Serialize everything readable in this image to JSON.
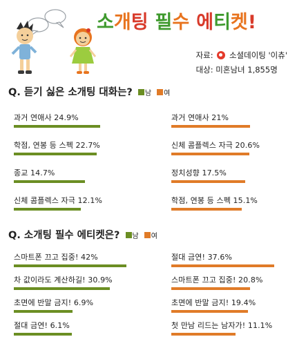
{
  "title": "소개팅 필수 에티켓!",
  "source": {
    "label": "자료:",
    "org": "소셜데이팅 '이츄'",
    "target_label": "대상:",
    "target": "미혼남녀 1,855명"
  },
  "colors": {
    "male": "#6b8e23",
    "female": "#e07b28",
    "title_green": "#3f9a2e",
    "title_orange": "#e8741f",
    "title_red": "#d83a2a"
  },
  "legend": {
    "male": "남",
    "female": "여"
  },
  "chart_data": [
    {
      "type": "bar",
      "title": "Q. 듣기 싫은 소개팅 대화는?",
      "unit": "%",
      "series": [
        {
          "name": "남",
          "labels": [
            "과거 연애사 24.9%",
            "학점, 연봉 등 스펙 22.7%",
            "종교 14.7%",
            "신체 콤플렉스 자극 12.1%"
          ],
          "categories": [
            "과거 연애사",
            "학점, 연봉 등 스펙",
            "종교",
            "신체 콤플렉스 자극"
          ],
          "values": [
            24.9,
            22.7,
            14.7,
            12.1
          ]
        },
        {
          "name": "여",
          "labels": [
            "과거 연애사 21%",
            "신체 콤플렉스 자극 20.6%",
            "정치성향 17.5%",
            "학점, 연봉 등 스펙 15.1%"
          ],
          "categories": [
            "과거 연애사",
            "신체 콤플렉스 자극",
            "정치성향",
            "학점, 연봉 등 스펙"
          ],
          "values": [
            21,
            20.6,
            17.5,
            15.1
          ]
        }
      ]
    },
    {
      "type": "bar",
      "title": "Q. 소개팅 필수 에티켓은?",
      "unit": "%",
      "series": [
        {
          "name": "남",
          "labels": [
            "스마트폰 끄고 집중! 42%",
            "차 값이라도 계산하길! 30.9%",
            "초면에 반말 금지! 6.9%",
            "절대 금연! 6.1%"
          ],
          "categories": [
            "스마트폰 끄고 집중!",
            "차 값이라도 계산하길!",
            "초면에 반말 금지!",
            "절대 금연!"
          ],
          "values": [
            42,
            30.9,
            6.9,
            6.1
          ]
        },
        {
          "name": "여",
          "labels": [
            "절대 금연! 37.6%",
            "스마트폰 끄고 집중! 20.8%",
            "초면에 반말 금지! 19.4%",
            "첫 만남 리드는 남자가! 11.1%"
          ],
          "categories": [
            "절대 금연!",
            "스마트폰 끄고 집중!",
            "초면에 반말 금지!",
            "첫 만남 리드는 남자가!"
          ],
          "values": [
            37.6,
            20.8,
            19.4,
            11.1
          ]
        }
      ]
    }
  ]
}
